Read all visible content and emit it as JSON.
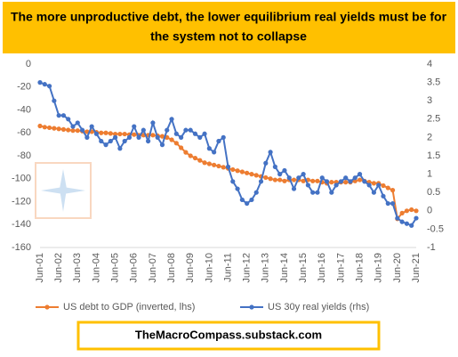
{
  "chart_data": {
    "type": "line",
    "title": [
      "The more unproductive debt, the lower equilibrium real yields must be for",
      "the system not to collapse"
    ],
    "footer": "TheMacroCompass.substack.com",
    "categories": [
      "Jun-01",
      null,
      null,
      null,
      "Jun-02",
      null,
      null,
      null,
      "Jun-03",
      null,
      null,
      null,
      "Jun-04",
      null,
      null,
      null,
      "Jun-05",
      null,
      null,
      null,
      "Jun-06",
      null,
      null,
      null,
      "Jun-07",
      null,
      null,
      null,
      "Jun-08",
      null,
      null,
      null,
      "Jun-09",
      null,
      null,
      null,
      "Jun-10",
      null,
      null,
      null,
      "Jun-11",
      null,
      null,
      null,
      "Jun-12",
      null,
      null,
      null,
      "Jun-13",
      null,
      null,
      null,
      "Jun-14",
      null,
      null,
      null,
      "Jun-15",
      null,
      null,
      null,
      "Jun-16",
      null,
      null,
      null,
      "Jun-17",
      null,
      null,
      null,
      "Jun-18",
      null,
      null,
      null,
      "Jun-19",
      null,
      null,
      null,
      "Jun-20",
      null,
      null,
      null,
      "Jun-21"
    ],
    "series": [
      {
        "name": "US debt to GDP (inverted, lhs)",
        "color": "#ed7d31",
        "axis": "y",
        "values": [
          -54,
          -55,
          -55.5,
          -56,
          -56.5,
          -57,
          -57.5,
          -58,
          -58,
          -58.5,
          -59,
          -59,
          -59.5,
          -60,
          -60,
          -60.5,
          -61,
          -61,
          -61,
          -61.5,
          -61.5,
          -62,
          -62,
          -62,
          -62,
          -62.5,
          -63,
          -64,
          -66,
          -69,
          -73,
          -77,
          -80,
          -82,
          -84,
          -86,
          -87,
          -88,
          -89,
          -90,
          -91,
          -92,
          -93,
          -94,
          -95,
          -96,
          -97,
          -98,
          -99,
          -100,
          -101,
          -101,
          -102,
          -101,
          -101,
          -101,
          -102,
          -101,
          -102,
          -102,
          -103,
          -104,
          -103,
          -103,
          -103,
          -103,
          -103,
          -102,
          -101,
          -102,
          -103,
          -104,
          -104,
          -106,
          -108,
          -110,
          -135,
          -130,
          -128,
          -127,
          -128
        ]
      },
      {
        "name": "US 30y real yields (rhs)",
        "color": "#4472c4",
        "axis": "y2",
        "values": [
          3.5,
          3.45,
          3.4,
          3.0,
          2.6,
          2.6,
          2.5,
          2.3,
          2.4,
          2.2,
          2.0,
          2.3,
          2.1,
          1.9,
          1.8,
          1.9,
          2.0,
          1.7,
          1.9,
          2.0,
          2.3,
          2.0,
          2.2,
          1.9,
          2.4,
          2.0,
          1.8,
          2.2,
          2.5,
          2.1,
          2.0,
          2.2,
          2.2,
          2.1,
          2.0,
          2.1,
          1.7,
          1.6,
          1.9,
          2.0,
          1.2,
          0.8,
          0.6,
          0.3,
          0.2,
          0.3,
          0.5,
          0.8,
          1.3,
          1.6,
          1.2,
          1.0,
          1.1,
          0.9,
          0.6,
          0.9,
          1.0,
          0.7,
          0.5,
          0.5,
          0.9,
          0.8,
          0.5,
          0.7,
          0.8,
          0.9,
          0.8,
          0.9,
          1.0,
          0.8,
          0.7,
          0.5,
          0.7,
          0.4,
          0.2,
          0.2,
          -0.2,
          -0.3,
          -0.35,
          -0.4,
          -0.2
        ]
      }
    ],
    "ylim": [
      -160,
      0
    ],
    "yticks": [
      0,
      -20,
      -40,
      -60,
      -80,
      -100,
      -120,
      -140,
      -160
    ],
    "y2lim": [
      -1,
      4
    ],
    "y2ticks": [
      4,
      3.5,
      3,
      2.5,
      2,
      1.5,
      1,
      0.5,
      0,
      -0.5,
      -1
    ],
    "legend": "bottom"
  }
}
